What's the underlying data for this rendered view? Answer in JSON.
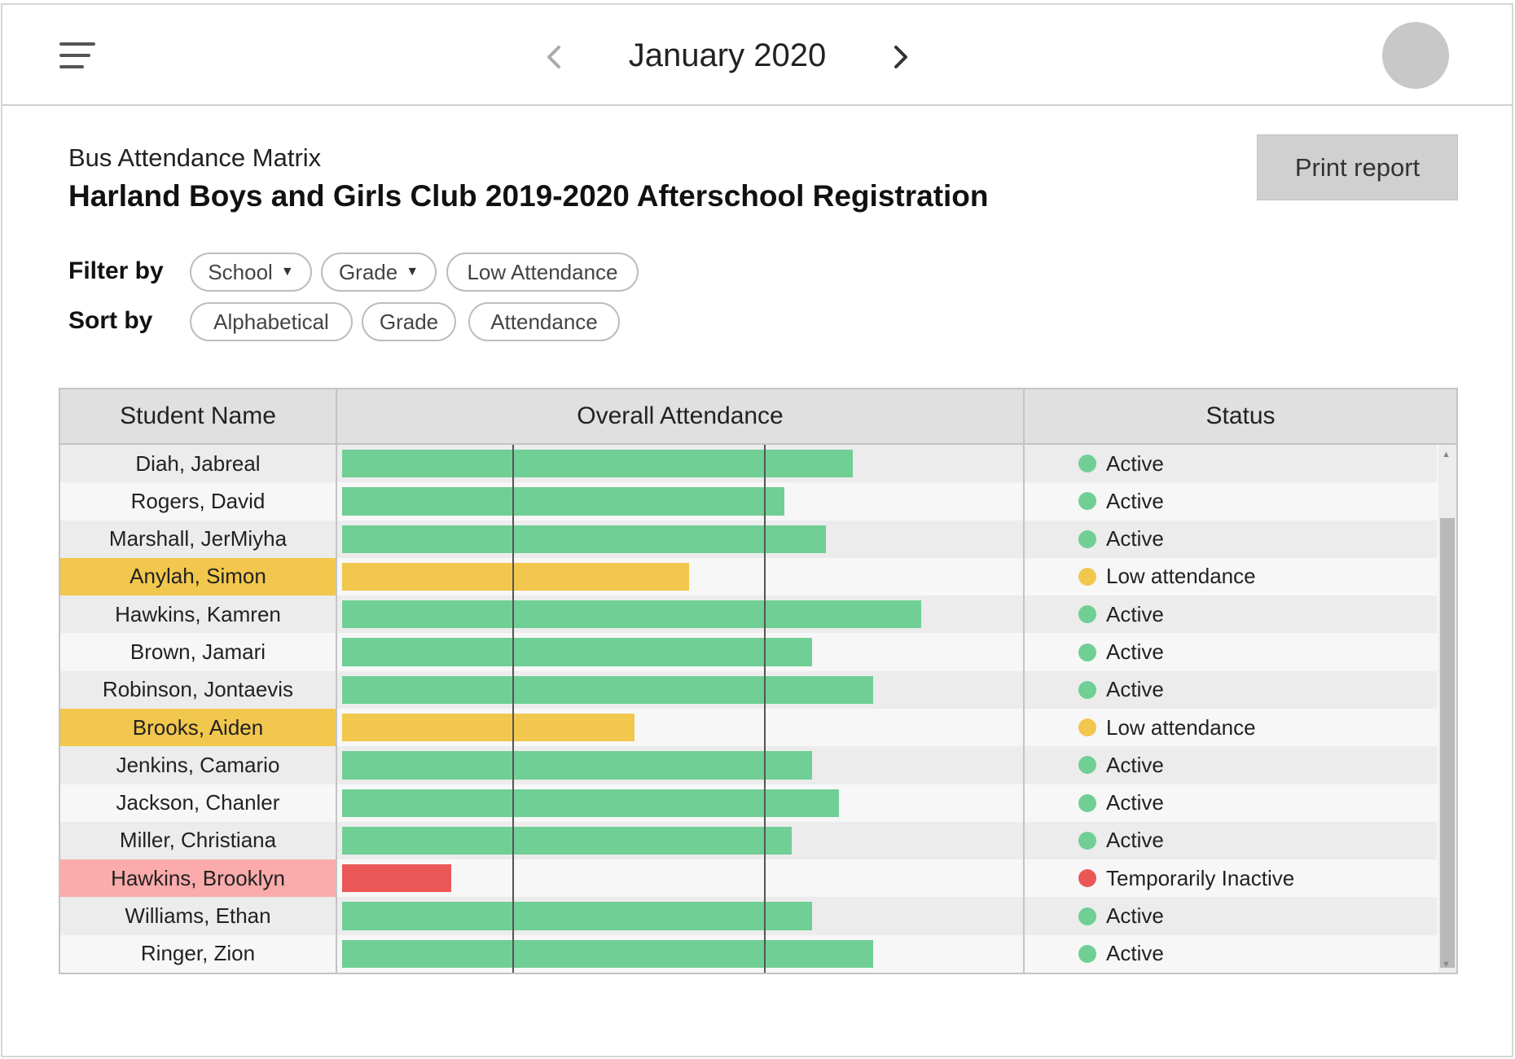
{
  "header": {
    "month": "January 2020",
    "menu_icon": "hamburger-icon",
    "prev_icon": "chevron-left-icon",
    "next_icon": "chevron-right-icon"
  },
  "page": {
    "subtitle": "Bus Attendance Matrix",
    "title": "Harland Boys and Girls Club 2019-2020 Afterschool Registration",
    "print_label": "Print report"
  },
  "filters": {
    "filter_label": "Filter by",
    "sort_label": "Sort by",
    "filter_chips": [
      {
        "label": "School",
        "dropdown": true
      },
      {
        "label": "Grade",
        "dropdown": true
      },
      {
        "label": "Low Attendance",
        "dropdown": false
      }
    ],
    "sort_chips": [
      {
        "label": "Alphabetical"
      },
      {
        "label": "Grade"
      },
      {
        "label": "Attendance"
      }
    ]
  },
  "colors": {
    "active": "#70cf95",
    "low": "#f2c74d",
    "inactive": "#eb5757",
    "low_row": "#f2c74d",
    "inactive_row": "#fbabab"
  },
  "table": {
    "columns": [
      "Student Name",
      "Overall Attendance",
      "Status"
    ],
    "attendance_max": 100,
    "reference_lines": [
      25,
      62
    ],
    "rows": [
      {
        "name": "Diah, Jabreal",
        "attendance": 75,
        "status": "Active",
        "level": "active"
      },
      {
        "name": "Rogers, David",
        "attendance": 65,
        "status": "Active",
        "level": "active"
      },
      {
        "name": "Marshall, JerMiyha",
        "attendance": 71,
        "status": "Active",
        "level": "active"
      },
      {
        "name": "Anylah, Simon",
        "attendance": 51,
        "status": "Low attendance",
        "level": "low"
      },
      {
        "name": "Hawkins, Kamren",
        "attendance": 85,
        "status": "Active",
        "level": "active"
      },
      {
        "name": "Brown, Jamari",
        "attendance": 69,
        "status": "Active",
        "level": "active"
      },
      {
        "name": "Robinson, Jontaevis",
        "attendance": 78,
        "status": "Active",
        "level": "active"
      },
      {
        "name": "Brooks, Aiden",
        "attendance": 43,
        "status": "Low attendance",
        "level": "low"
      },
      {
        "name": "Jenkins, Camario",
        "attendance": 69,
        "status": "Active",
        "level": "active"
      },
      {
        "name": "Jackson, Chanler",
        "attendance": 73,
        "status": "Active",
        "level": "active"
      },
      {
        "name": "Miller, Christiana",
        "attendance": 66,
        "status": "Active",
        "level": "active"
      },
      {
        "name": "Hawkins, Brooklyn",
        "attendance": 16,
        "status": "Temporarily Inactive",
        "level": "inactive"
      },
      {
        "name": "Williams, Ethan",
        "attendance": 69,
        "status": "Active",
        "level": "active"
      },
      {
        "name": "Ringer, Zion",
        "attendance": 78,
        "status": "Active",
        "level": "active"
      }
    ]
  }
}
